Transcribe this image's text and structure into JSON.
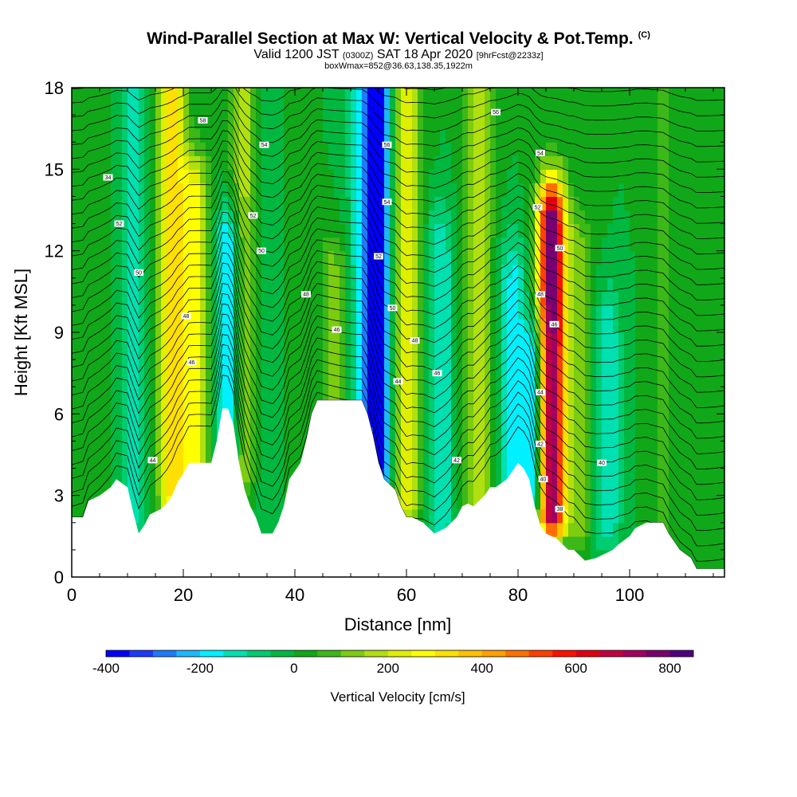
{
  "header": {
    "title": "Wind-Parallel Section at Max W: Vertical Velocity & Pot.Temp.",
    "copyright": "(C)",
    "valid_prefix": "Valid 1200 JST",
    "valid_utc": "(0300Z)",
    "valid_date": "SAT 18 Apr 2020",
    "forecast": "[9hrFcst@2233z]",
    "subtitle2": "boxWmax=852@36.63,138.35,1922m"
  },
  "chart_data": {
    "type": "heatmap",
    "xlabel": "Distance [nm]",
    "ylabel": "Height [Kft MSL]",
    "xlim": [
      0,
      117
    ],
    "ylim": [
      0,
      18
    ],
    "x_ticks": [
      0,
      20,
      40,
      60,
      80,
      100
    ],
    "y_ticks": [
      0,
      3,
      6,
      9,
      12,
      15,
      18
    ],
    "colorbar": {
      "label": "Vertical Velocity [cm/s]",
      "range": [
        -400,
        850
      ],
      "step": 50,
      "ticks": [
        -400,
        -200,
        0,
        200,
        400,
        600,
        800
      ],
      "colors": [
        "#0000ff",
        "#1b3cff",
        "#1e7bff",
        "#1cb8ff",
        "#00f0ff",
        "#00e0b0",
        "#00cc70",
        "#00b840",
        "#10a818",
        "#3cb818",
        "#7ccc10",
        "#b0e010",
        "#e0ee00",
        "#ffff00",
        "#ffe000",
        "#ffc000",
        "#ffa000",
        "#ff7000",
        "#ff4000",
        "#ff1000",
        "#e00010",
        "#c00040",
        "#a00060",
        "#780070",
        "#500080"
      ]
    },
    "velocity_features": [
      {
        "x": 5,
        "y_bottom": 3,
        "y_top": 18,
        "w": 20
      },
      {
        "x": 11,
        "y_bottom": 2.5,
        "y_top": 18,
        "w": -120
      },
      {
        "x": 18,
        "y_bottom": 3,
        "y_top": 18,
        "w": 320
      },
      {
        "x": 22,
        "y_bottom": 4,
        "y_top": 14,
        "w": 260
      },
      {
        "x": 28,
        "y_bottom": 5,
        "y_top": 12,
        "w": -230
      },
      {
        "x": 31,
        "y_bottom": 4,
        "y_top": 18,
        "w": 180
      },
      {
        "x": 34,
        "y_bottom": 3,
        "y_top": 18,
        "w": -50
      },
      {
        "x": 40,
        "y_bottom": 3,
        "y_top": 18,
        "w": 10
      },
      {
        "x": 47,
        "y_bottom": 6,
        "y_top": 11,
        "w": 130
      },
      {
        "x": 52,
        "y_bottom": 6,
        "y_top": 18,
        "w": -150
      },
      {
        "x": 55,
        "y_bottom": 4,
        "y_top": 18,
        "w": -380
      },
      {
        "x": 60,
        "y_bottom": 3,
        "y_top": 18,
        "w": 260
      },
      {
        "x": 66,
        "y_bottom": 2,
        "y_top": 12,
        "w": -150
      },
      {
        "x": 73,
        "y_bottom": 3,
        "y_top": 18,
        "w": 170
      },
      {
        "x": 79,
        "y_bottom": 3,
        "y_top": 11,
        "w": -160
      },
      {
        "x": 83,
        "y_bottom": 3,
        "y_top": 8,
        "w": -250
      },
      {
        "x": 86,
        "y_bottom": 2.5,
        "y_top": 13,
        "w": 800
      },
      {
        "x": 91,
        "y_bottom": 2,
        "y_top": 12,
        "w": 120
      },
      {
        "x": 96,
        "y_bottom": 2,
        "y_top": 9,
        "w": -150
      },
      {
        "x": 106,
        "y_bottom": 2,
        "y_top": 18,
        "w": 60
      }
    ],
    "terrain": [
      [
        0,
        2.2
      ],
      [
        2,
        2.2
      ],
      [
        3,
        2.8
      ],
      [
        5,
        3.0
      ],
      [
        7,
        3.3
      ],
      [
        8,
        3.6
      ],
      [
        10,
        3.3
      ],
      [
        11,
        2.4
      ],
      [
        12,
        1.6
      ],
      [
        13,
        1.9
      ],
      [
        14,
        2.3
      ],
      [
        16,
        2.5
      ],
      [
        17,
        2.7
      ],
      [
        18,
        3.0
      ],
      [
        19,
        3.5
      ],
      [
        20,
        3.8
      ],
      [
        21,
        4.2
      ],
      [
        23,
        4.2
      ],
      [
        25,
        4.2
      ],
      [
        26,
        5.0
      ],
      [
        27,
        6.2
      ],
      [
        28,
        6.2
      ],
      [
        29,
        5.6
      ],
      [
        30,
        4.2
      ],
      [
        31,
        3.2
      ],
      [
        32,
        2.6
      ],
      [
        33,
        2.2
      ],
      [
        34,
        1.6
      ],
      [
        36,
        1.6
      ],
      [
        37,
        2.0
      ],
      [
        38,
        2.6
      ],
      [
        39,
        3.6
      ],
      [
        41,
        4.2
      ],
      [
        42,
        5.0
      ],
      [
        43,
        6.0
      ],
      [
        44,
        6.5
      ],
      [
        48,
        6.5
      ],
      [
        52,
        6.5
      ],
      [
        53,
        6.0
      ],
      [
        54,
        5.2
      ],
      [
        55,
        4.2
      ],
      [
        56,
        3.6
      ],
      [
        58,
        3.2
      ],
      [
        59,
        2.6
      ],
      [
        60,
        2.2
      ],
      [
        61,
        2.2
      ],
      [
        63,
        2.0
      ],
      [
        64,
        1.8
      ],
      [
        65,
        1.6
      ],
      [
        67,
        1.8
      ],
      [
        69,
        2.2
      ],
      [
        70,
        2.6
      ],
      [
        71,
        2.7
      ],
      [
        72,
        2.6
      ],
      [
        74,
        3.0
      ],
      [
        75,
        3.3
      ],
      [
        76,
        3.3
      ],
      [
        78,
        3.6
      ],
      [
        79,
        3.9
      ],
      [
        80,
        4.2
      ],
      [
        81,
        4.0
      ],
      [
        82,
        3.6
      ],
      [
        83,
        2.6
      ],
      [
        84,
        1.9
      ],
      [
        85,
        1.6
      ],
      [
        87,
        1.4
      ],
      [
        88,
        1.2
      ],
      [
        89,
        1.0
      ],
      [
        90,
        1.0
      ],
      [
        91,
        0.8
      ],
      [
        92,
        0.6
      ],
      [
        94,
        0.7
      ],
      [
        95,
        0.8
      ],
      [
        97,
        1.0
      ],
      [
        98,
        1.2
      ],
      [
        100,
        1.5
      ],
      [
        101,
        1.8
      ],
      [
        103,
        2.0
      ],
      [
        106,
        2.0
      ],
      [
        107,
        1.6
      ],
      [
        109,
        1.0
      ],
      [
        111,
        0.7
      ],
      [
        112,
        0.3
      ],
      [
        117,
        0.3
      ]
    ],
    "isentrope_labels": [
      {
        "x": 23.5,
        "y": 16.8,
        "text": "58"
      },
      {
        "x": 6.5,
        "y": 14.7,
        "text": "34"
      },
      {
        "x": 8.5,
        "y": 13.0,
        "text": "52"
      },
      {
        "x": 12,
        "y": 11.2,
        "text": "50"
      },
      {
        "x": 20.5,
        "y": 9.6,
        "text": "48"
      },
      {
        "x": 21.5,
        "y": 7.9,
        "text": "46"
      },
      {
        "x": 14.5,
        "y": 4.3,
        "text": "44"
      },
      {
        "x": 34.5,
        "y": 15.9,
        "text": "54"
      },
      {
        "x": 32.5,
        "y": 13.3,
        "text": "52"
      },
      {
        "x": 34,
        "y": 12.0,
        "text": "50"
      },
      {
        "x": 42,
        "y": 10.4,
        "text": "48"
      },
      {
        "x": 47.5,
        "y": 9.1,
        "text": "46"
      },
      {
        "x": 56.5,
        "y": 15.9,
        "text": "56"
      },
      {
        "x": 56.5,
        "y": 13.8,
        "text": "54"
      },
      {
        "x": 55,
        "y": 11.8,
        "text": "52"
      },
      {
        "x": 57.5,
        "y": 9.9,
        "text": "50"
      },
      {
        "x": 61.5,
        "y": 8.7,
        "text": "48"
      },
      {
        "x": 65.5,
        "y": 7.5,
        "text": "46"
      },
      {
        "x": 58.5,
        "y": 7.2,
        "text": "44"
      },
      {
        "x": 69,
        "y": 4.3,
        "text": "42"
      },
      {
        "x": 76,
        "y": 17.1,
        "text": "56"
      },
      {
        "x": 84,
        "y": 15.6,
        "text": "54"
      },
      {
        "x": 83.5,
        "y": 13.6,
        "text": "52"
      },
      {
        "x": 87.5,
        "y": 12.1,
        "text": "50"
      },
      {
        "x": 84,
        "y": 10.4,
        "text": "48"
      },
      {
        "x": 86.5,
        "y": 9.3,
        "text": "46"
      },
      {
        "x": 84,
        "y": 6.8,
        "text": "44"
      },
      {
        "x": 84,
        "y": 4.9,
        "text": "42"
      },
      {
        "x": 84.5,
        "y": 3.6,
        "text": "40"
      },
      {
        "x": 87.5,
        "y": 2.5,
        "text": "38"
      },
      {
        "x": 95,
        "y": 4.2,
        "text": "40"
      }
    ]
  }
}
